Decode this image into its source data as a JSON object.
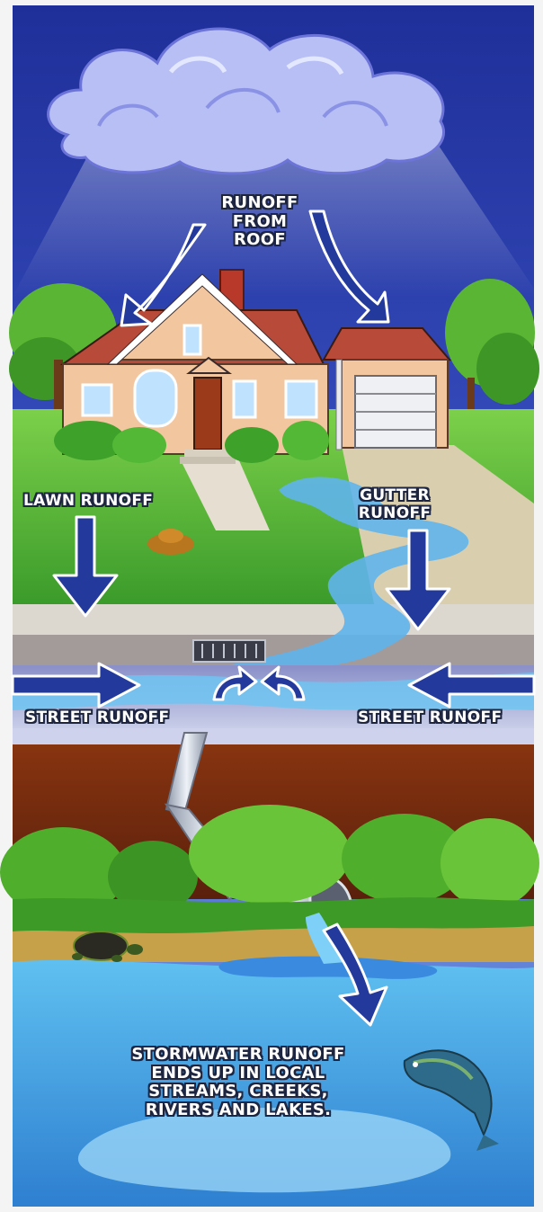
{
  "labels": {
    "roof": [
      "RUNOFF",
      "FROM",
      "ROOF"
    ],
    "lawn": "LAWN RUNOFF",
    "gutter": [
      "GUTTER",
      "RUNOFF"
    ],
    "street_left": "STREET RUNOFF",
    "street_right": "STREET RUNOFF",
    "outfall": [
      "STORMWATER RUNOFF",
      "ENDS UP IN LOCAL",
      "STREAMS, CREEKS,",
      "RIVERS AND LAKES."
    ]
  },
  "icons": [
    "cloud-icon",
    "house-icon",
    "storm-drain-icon",
    "drain-pipe-icon",
    "turtle-icon",
    "fish-icon",
    "flow-arrow-icon"
  ],
  "colors": {
    "sky": "#2f3fa6",
    "arrow": "#233a9c",
    "water": "#4aa3e0",
    "soil": "#6b2a12",
    "grass": "#4ea42a",
    "label_outline": "#1d2540"
  }
}
